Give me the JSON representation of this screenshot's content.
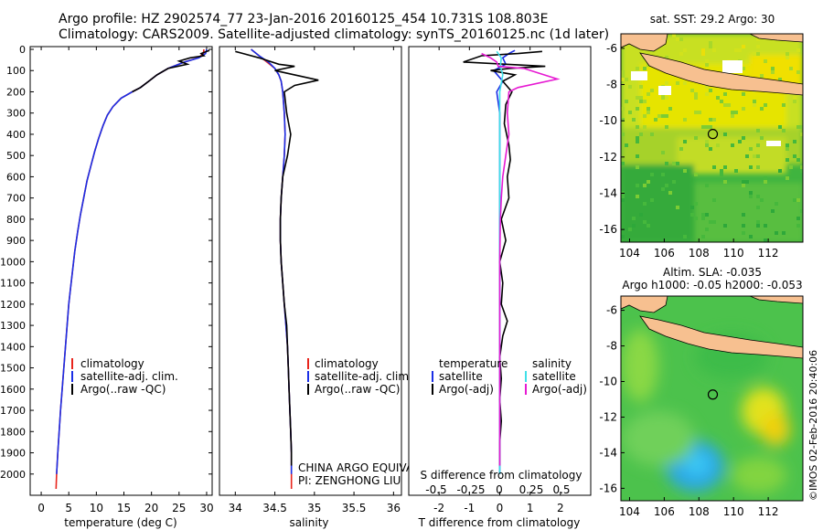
{
  "header": {
    "line1": "Argo profile: HZ 2902574_77 23-Jan-2016 20160125_454 10.731S 108.803E",
    "line2": "Climatology: CARS2009. Satellite-adjusted climatology: synTS_20160125.nc (1d later)"
  },
  "colors": {
    "climatology": "#e8241c",
    "satellite": "#1a2ee6",
    "argo": "#000000",
    "sat_salinity": "#3fe0e8",
    "argo_adj_salinity": "#e619d2",
    "land": "#f7c090",
    "ocean_bg": "#4cc24c"
  },
  "chart_data": [
    {
      "type": "line",
      "id": "temperature",
      "xlabel": "temperature (deg C)",
      "xticks": [
        0,
        5,
        10,
        15,
        20,
        25,
        30
      ],
      "xlim": [
        -2,
        31
      ],
      "ylim": [
        2100,
        0
      ],
      "yticks": [
        0,
        100,
        200,
        300,
        400,
        500,
        600,
        700,
        800,
        900,
        1000,
        1100,
        1200,
        1300,
        1400,
        1500,
        1600,
        1700,
        1800,
        1900,
        2000
      ],
      "legend": [
        "climatology",
        "satellite-adj. clim.",
        "Argo(..raw -QC)"
      ],
      "series": [
        {
          "name": "climatology",
          "color_key": "climatology",
          "points": [
            [
              29.5,
              0
            ],
            [
              29.4,
              20
            ],
            [
              28.5,
              40
            ],
            [
              26,
              60
            ],
            [
              23,
              90
            ],
            [
              21,
              120
            ],
            [
              19.5,
              150
            ],
            [
              18,
              180
            ],
            [
              16.5,
              200
            ],
            [
              14.5,
              230
            ],
            [
              13,
              270
            ],
            [
              12,
              310
            ],
            [
              11.2,
              360
            ],
            [
              10.4,
              420
            ],
            [
              9.7,
              480
            ],
            [
              9,
              550
            ],
            [
              8.3,
              620
            ],
            [
              7.7,
              700
            ],
            [
              7.1,
              780
            ],
            [
              6.6,
              860
            ],
            [
              6.1,
              950
            ],
            [
              5.7,
              1040
            ],
            [
              5.3,
              1130
            ],
            [
              5,
              1200
            ],
            [
              4.7,
              1300
            ],
            [
              4.4,
              1400
            ],
            [
              4.1,
              1500
            ],
            [
              3.8,
              1600
            ],
            [
              3.5,
              1700
            ],
            [
              3.25,
              1800
            ],
            [
              3,
              1900
            ],
            [
              2.8,
              2000
            ],
            [
              2.7,
              2070
            ]
          ]
        },
        {
          "name": "satellite-adj. clim.",
          "color_key": "satellite",
          "points": [
            [
              30,
              0
            ],
            [
              29.8,
              20
            ],
            [
              28.6,
              40
            ],
            [
              26,
              60
            ],
            [
              23,
              90
            ],
            [
              21,
              120
            ],
            [
              19.5,
              150
            ],
            [
              18,
              180
            ],
            [
              16.5,
              200
            ],
            [
              14.5,
              230
            ],
            [
              13,
              270
            ],
            [
              12,
              310
            ],
            [
              11.2,
              360
            ],
            [
              10.4,
              420
            ],
            [
              9.7,
              480
            ],
            [
              9,
              550
            ],
            [
              8.3,
              620
            ],
            [
              7.7,
              700
            ],
            [
              7.1,
              780
            ],
            [
              6.6,
              860
            ],
            [
              6.1,
              950
            ],
            [
              5.7,
              1040
            ],
            [
              5.3,
              1130
            ],
            [
              5,
              1200
            ],
            [
              4.7,
              1300
            ],
            [
              4.4,
              1400
            ],
            [
              4.1,
              1500
            ],
            [
              3.8,
              1600
            ],
            [
              3.5,
              1700
            ],
            [
              3.25,
              1800
            ],
            [
              3,
              1900
            ],
            [
              2.8,
              2000
            ]
          ]
        },
        {
          "name": "Argo(..raw -QC)",
          "color_key": "argo",
          "points": [
            [
              30.5,
              5
            ],
            [
              30,
              10
            ],
            [
              29,
              20
            ],
            [
              29.5,
              30
            ],
            [
              27,
              40
            ],
            [
              25,
              55
            ],
            [
              26.5,
              70
            ],
            [
              23,
              90
            ],
            [
              21,
              120
            ],
            [
              19.5,
              150
            ],
            [
              18,
              180
            ],
            [
              16.5,
              200
            ]
          ]
        }
      ]
    },
    {
      "type": "line",
      "id": "salinity",
      "xlabel": "salinity",
      "xticks": [
        34,
        34.5,
        35,
        35.5,
        36
      ],
      "xlim": [
        33.8,
        36.1
      ],
      "ylim": [
        2100,
        0
      ],
      "legend": [
        "climatology",
        "satellite-adj. clim.",
        "Argo(..raw -QC)"
      ],
      "annotation": [
        "CHINA ARGO EQUIVALENT",
        "PI: ZENGHONG LIU"
      ],
      "series": [
        {
          "name": "climatology",
          "color_key": "climatology",
          "points": [
            [
              34.2,
              0
            ],
            [
              34.3,
              30
            ],
            [
              34.4,
              60
            ],
            [
              34.5,
              90
            ],
            [
              34.55,
              120
            ],
            [
              34.58,
              150
            ],
            [
              34.6,
              200
            ],
            [
              34.62,
              300
            ],
            [
              34.63,
              400
            ],
            [
              34.62,
              500
            ],
            [
              34.6,
              600
            ],
            [
              34.58,
              700
            ],
            [
              34.57,
              800
            ],
            [
              34.57,
              900
            ],
            [
              34.58,
              1000
            ],
            [
              34.6,
              1100
            ],
            [
              34.62,
              1200
            ],
            [
              34.64,
              1300
            ],
            [
              34.66,
              1400
            ],
            [
              34.67,
              1500
            ],
            [
              34.68,
              1600
            ],
            [
              34.69,
              1700
            ],
            [
              34.7,
              1800
            ],
            [
              34.71,
              1900
            ],
            [
              34.71,
              2000
            ],
            [
              34.71,
              2070
            ]
          ]
        },
        {
          "name": "satellite-adj. clim.",
          "color_key": "satellite",
          "points": [
            [
              34.2,
              0
            ],
            [
              34.3,
              30
            ],
            [
              34.42,
              60
            ],
            [
              34.5,
              90
            ],
            [
              34.55,
              120
            ],
            [
              34.58,
              150
            ],
            [
              34.6,
              200
            ],
            [
              34.62,
              300
            ],
            [
              34.63,
              400
            ],
            [
              34.62,
              500
            ],
            [
              34.6,
              600
            ],
            [
              34.58,
              700
            ],
            [
              34.57,
              800
            ],
            [
              34.57,
              900
            ],
            [
              34.58,
              1000
            ],
            [
              34.6,
              1100
            ],
            [
              34.62,
              1200
            ],
            [
              34.64,
              1300
            ],
            [
              34.66,
              1400
            ],
            [
              34.67,
              1500
            ],
            [
              34.68,
              1600
            ],
            [
              34.69,
              1700
            ],
            [
              34.7,
              1800
            ],
            [
              34.71,
              1900
            ],
            [
              34.71,
              2000
            ]
          ]
        },
        {
          "name": "Argo(..raw -QC)",
          "color_key": "argo",
          "points": [
            [
              34.0,
              10
            ],
            [
              34.1,
              20
            ],
            [
              34.3,
              40
            ],
            [
              34.55,
              70
            ],
            [
              34.75,
              80
            ],
            [
              34.5,
              100
            ],
            [
              35.05,
              145
            ],
            [
              34.75,
              170
            ],
            [
              34.62,
              200
            ],
            [
              34.65,
              300
            ],
            [
              34.7,
              400
            ],
            [
              34.66,
              500
            ],
            [
              34.6,
              600
            ],
            [
              34.58,
              700
            ],
            [
              34.57,
              800
            ],
            [
              34.57,
              900
            ],
            [
              34.58,
              1000
            ],
            [
              34.6,
              1100
            ],
            [
              34.62,
              1200
            ],
            [
              34.65,
              1300
            ],
            [
              34.66,
              1400
            ],
            [
              34.67,
              1500
            ],
            [
              34.68,
              1600
            ],
            [
              34.69,
              1700
            ],
            [
              34.7,
              1800
            ],
            [
              34.71,
              1900
            ],
            [
              34.71,
              1960
            ]
          ]
        }
      ]
    },
    {
      "type": "line",
      "id": "differences",
      "xlabel": "T difference from climatology",
      "xlabel_top": "S difference from climatology",
      "xticks": [
        -2,
        -1,
        0,
        1,
        2
      ],
      "xticks_s": [
        "-0.5",
        "-0.25",
        "0",
        "0.25",
        "0.5"
      ],
      "xlim": [
        -3,
        3
      ],
      "ylim": [
        2100,
        0
      ],
      "legend_left_title": "temperature",
      "legend_right_title": "salinity",
      "legend_left": [
        "satellite",
        "Argo(-adj)"
      ],
      "legend_right": [
        "satellite",
        "Argo(-adj)"
      ],
      "series": [
        {
          "name": "temperature satellite",
          "color_key": "satellite",
          "points": [
            [
              0.5,
              5
            ],
            [
              0.3,
              20
            ],
            [
              0.1,
              40
            ],
            [
              0.2,
              70
            ],
            [
              -0.2,
              100
            ],
            [
              0.1,
              150
            ],
            [
              -0.1,
              200
            ],
            [
              0,
              300
            ],
            [
              0,
              400
            ],
            [
              0,
              600
            ],
            [
              0,
              1000
            ],
            [
              0,
              1500
            ],
            [
              0,
              2000
            ]
          ]
        },
        {
          "name": "temperature Argo(-adj)",
          "color_key": "argo",
          "points": [
            [
              1.4,
              10
            ],
            [
              0.6,
              20
            ],
            [
              -0.6,
              30
            ],
            [
              -1.2,
              60
            ],
            [
              1.5,
              80
            ],
            [
              0.3,
              90
            ],
            [
              -0.3,
              100
            ],
            [
              0.5,
              120
            ],
            [
              0.1,
              150
            ],
            [
              0.4,
              200
            ],
            [
              0.2,
              260
            ],
            [
              0.15,
              350
            ],
            [
              0.3,
              450
            ],
            [
              0.35,
              520
            ],
            [
              0.25,
              600
            ],
            [
              0.3,
              700
            ],
            [
              0.05,
              800
            ],
            [
              0.2,
              900
            ],
            [
              0,
              1000
            ],
            [
              0.1,
              1100
            ],
            [
              0.05,
              1200
            ],
            [
              0.25,
              1280
            ],
            [
              0.1,
              1350
            ],
            [
              0,
              1450
            ],
            [
              0.05,
              1550
            ],
            [
              0,
              1650
            ],
            [
              0.05,
              1750
            ],
            [
              0,
              1850
            ],
            [
              0,
              1960
            ]
          ]
        },
        {
          "name": "salinity satellite",
          "color_key": "sat_salinity",
          "points": [
            [
              -0.1,
              10
            ],
            [
              0.05,
              40
            ],
            [
              0.02,
              80
            ],
            [
              0.1,
              120
            ],
            [
              0,
              200
            ],
            [
              0,
              300
            ],
            [
              0,
              500
            ],
            [
              0,
              800
            ],
            [
              0,
              1200
            ],
            [
              0,
              1600
            ],
            [
              0,
              2000
            ]
          ]
        },
        {
          "name": "salinity Argo(-adj)",
          "color_key": "argo_adj_salinity",
          "points": [
            [
              -0.6,
              20
            ],
            [
              -0.3,
              40
            ],
            [
              -0.1,
              60
            ],
            [
              -0.05,
              80
            ],
            [
              0.8,
              90
            ],
            [
              1.9,
              140
            ],
            [
              0.6,
              180
            ],
            [
              0.3,
              200
            ],
            [
              0.25,
              300
            ],
            [
              0.3,
              400
            ],
            [
              0.2,
              500
            ],
            [
              0.1,
              600
            ],
            [
              0.05,
              700
            ],
            [
              0.02,
              800
            ],
            [
              0,
              1000
            ],
            [
              0,
              1500
            ],
            [
              0,
              1960
            ]
          ]
        }
      ]
    },
    {
      "type": "heatmap",
      "id": "sst-map",
      "title": "sat. SST: 29.2  Argo: 30",
      "xticks": [
        104,
        106,
        108,
        110,
        112
      ],
      "yticks": [
        -6,
        -8,
        -10,
        -12,
        -14,
        -16
      ],
      "xlim": [
        103.5,
        114
      ],
      "ylim": [
        -16.7,
        -5.2
      ],
      "marker": [
        108.803,
        -10.731
      ]
    },
    {
      "type": "heatmap",
      "id": "sla-map",
      "title": "Altim. SLA: -0.035",
      "subtitle": "Argo h1000: -0.05 h2000: -0.053",
      "xticks": [
        104,
        106,
        108,
        110,
        112
      ],
      "yticks": [
        -6,
        -8,
        -10,
        -12,
        -14,
        -16
      ],
      "xlim": [
        103.5,
        114
      ],
      "ylim": [
        -16.7,
        -5.2
      ],
      "marker": [
        108.803,
        -10.731
      ]
    }
  ],
  "footer": {
    "credit": "©IMOS 02-Feb-2016 20:40:06"
  }
}
